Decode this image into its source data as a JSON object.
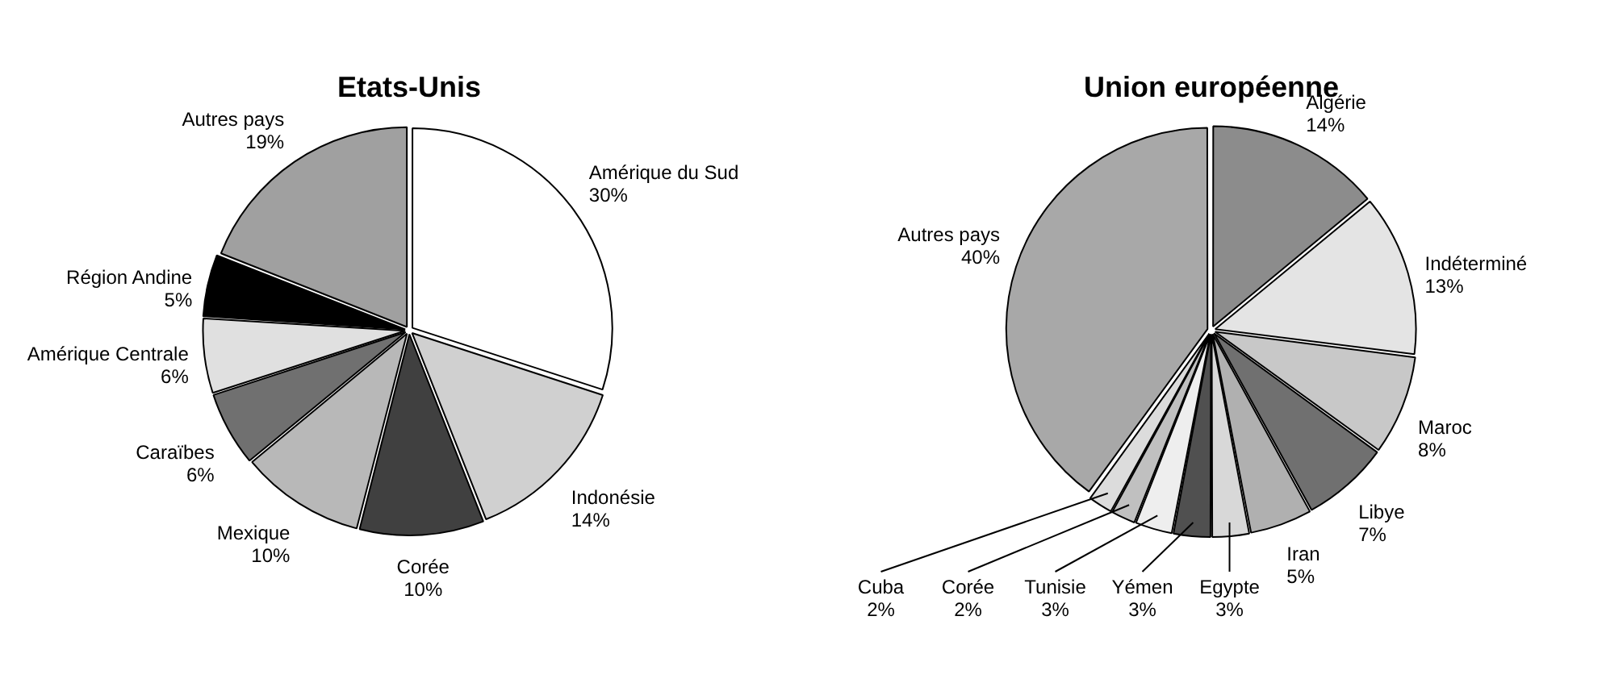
{
  "chart_data": [
    {
      "type": "pie",
      "title": "Etats-Unis",
      "categories": [
        "Amérique du Sud",
        "Indonésie",
        "Corée",
        "Mexique",
        "Caraïbes",
        "Amérique Centrale",
        "Région Andine",
        "Autres pays"
      ],
      "values": [
        30,
        14,
        10,
        10,
        6,
        6,
        5,
        19
      ],
      "value_labels": [
        "30%",
        "14%",
        "10%",
        "10%",
        "6%",
        "6%",
        "5%",
        "19%"
      ],
      "colors": [
        "#ffffff",
        "#d0d0d0",
        "#404040",
        "#b8b8b8",
        "#707070",
        "#e0e0e0",
        "#000000",
        "#a0a0a0"
      ],
      "legend": false
    },
    {
      "type": "pie",
      "title": "Union européenne",
      "categories": [
        "Algérie",
        "Indéterminé",
        "Maroc",
        "Libye",
        "Iran",
        "Egypte",
        "Yémen",
        "Tunisie",
        "Corée",
        "Cuba",
        "Autres pays"
      ],
      "values": [
        14,
        13,
        8,
        7,
        5,
        3,
        3,
        3,
        2,
        2,
        40
      ],
      "value_labels": [
        "14%",
        "13%",
        "8%",
        "7%",
        "5%",
        "3%",
        "3%",
        "3%",
        "2%",
        "2%",
        "40%"
      ],
      "colors": [
        "#8c8c8c",
        "#e4e4e4",
        "#c8c8c8",
        "#707070",
        "#b0b0b0",
        "#d8d8d8",
        "#505050",
        "#eeeeee",
        "#c0c0c0",
        "#dcdcdc",
        "#a8a8a8"
      ],
      "legend": false
    }
  ]
}
